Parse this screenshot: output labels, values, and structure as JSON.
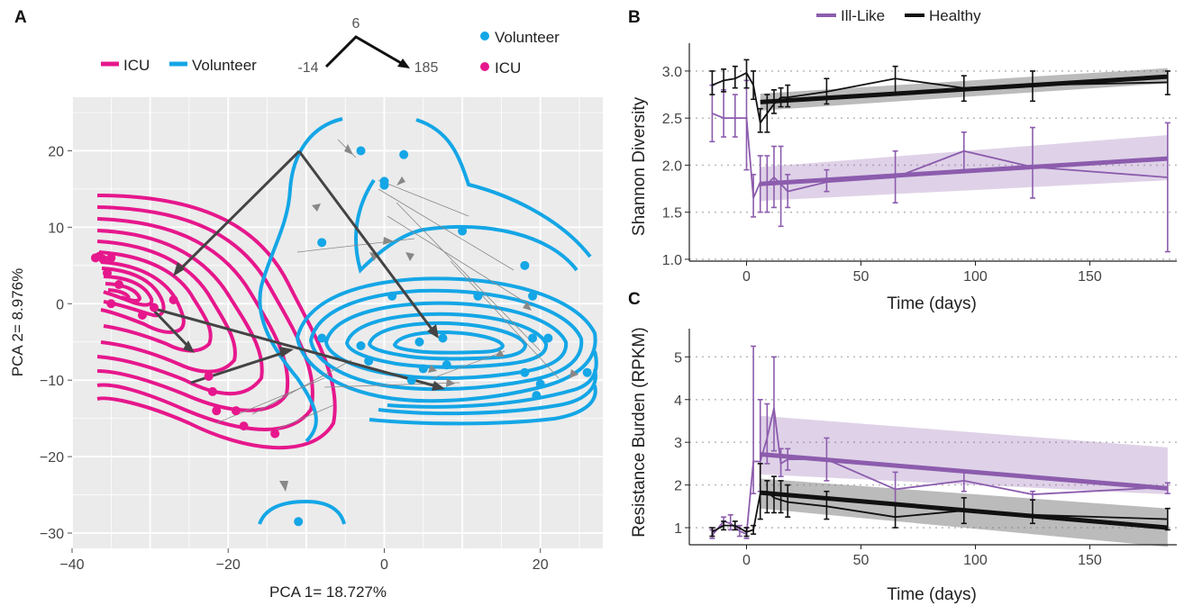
{
  "panels": {
    "a": {
      "letter": "A",
      "xlabel": "PCA 1= 18.727%",
      "ylabel": "PCA 2= 8.976%",
      "line_legend": [
        {
          "label": "ICU",
          "color": "#e6178c"
        },
        {
          "label": "Volunteer",
          "color": "#14a6e6"
        }
      ],
      "point_legend": [
        {
          "label": "Volunteer",
          "color": "#14a6e6"
        },
        {
          "label": "ICU",
          "color": "#e6178c"
        }
      ],
      "arrow_key": {
        "top": "6",
        "left": "-14",
        "right": "185"
      }
    },
    "b": {
      "letter": "B",
      "ylabel": "Shannon Diversity",
      "xlabel": "Time (days)"
    },
    "c": {
      "letter": "C",
      "ylabel": "Resistance Burden (RPKM)",
      "xlabel": "Time (days)"
    },
    "shared_legend": [
      {
        "label": "Ill-Like",
        "color": "#8c5cad"
      },
      {
        "label": "Healthy",
        "color": "#111111"
      }
    ]
  },
  "chart_data": [
    {
      "panel": "A",
      "type": "scatter",
      "xlabel": "PCA 1= 18.727%",
      "ylabel": "PCA 2= 8.976%",
      "xlim": [
        -40,
        28
      ],
      "ylim": [
        -32,
        27
      ],
      "xticks": [
        -40,
        -20,
        0,
        20
      ],
      "yticks": [
        20,
        10,
        0,
        -10,
        -20,
        -30
      ],
      "grid": true,
      "series": [
        {
          "name": "Volunteer",
          "color": "#14a6e6",
          "points": [
            [
              -3,
              20
            ],
            [
              2.5,
              19.5
            ],
            [
              0,
              16
            ],
            [
              0,
              15.5
            ],
            [
              -8,
              8
            ],
            [
              10,
              9.5
            ],
            [
              18,
              5
            ],
            [
              1,
              1
            ],
            [
              12,
              1
            ],
            [
              19,
              1
            ],
            [
              -8,
              -4.5
            ],
            [
              -3,
              -5.5
            ],
            [
              7.5,
              -4.5
            ],
            [
              4.5,
              -5
            ],
            [
              -2,
              -7.5
            ],
            [
              5,
              -8.5
            ],
            [
              8,
              -8
            ],
            [
              19,
              -4.5
            ],
            [
              21,
              -4.5
            ],
            [
              3.5,
              -10
            ],
            [
              18,
              -9
            ],
            [
              20,
              -10.5
            ],
            [
              26,
              -9
            ],
            [
              19.5,
              -12
            ],
            [
              -11,
              -28.5
            ]
          ]
        },
        {
          "name": "ICU",
          "color": "#e6178c",
          "points": [
            [
              -37,
              6
            ],
            [
              -36.5,
              6.2
            ],
            [
              -36,
              5.8
            ],
            [
              -35,
              6
            ],
            [
              -35.5,
              4
            ],
            [
              -34,
              2.5
            ],
            [
              -35,
              0
            ],
            [
              -31,
              -1.5
            ],
            [
              -29.5,
              -0.5
            ],
            [
              -27,
              0.5
            ],
            [
              -22.5,
              -9.5
            ],
            [
              -22,
              -11.5
            ],
            [
              -21.5,
              -14
            ],
            [
              -19,
              -14
            ],
            [
              -18,
              -16
            ],
            [
              -14,
              -17
            ]
          ]
        }
      ],
      "paths": [
        {
          "from": [
            -24,
            -10.5
          ],
          "to": [
            -11,
            -7
          ],
          "note": "trajectory"
        },
        {
          "from": [
            -10,
            20
          ],
          "to": [
            8,
            -4.5
          ],
          "note": "trajectory"
        }
      ]
    },
    {
      "panel": "B",
      "type": "line",
      "xlabel": "Time (days)",
      "ylabel": "Shannon Diversity",
      "xlim": [
        -25,
        188
      ],
      "ylim": [
        0.98,
        3.2
      ],
      "xticks": [
        0,
        50,
        100,
        150
      ],
      "yticks": [
        1.0,
        1.5,
        2.0,
        2.5,
        3.0
      ],
      "grid": "horizontal dotted",
      "series": [
        {
          "name": "Ill-Like",
          "color": "#8c5cad",
          "x": [
            -15,
            -10,
            -5,
            0,
            3,
            6,
            9,
            12,
            15,
            18,
            35,
            65,
            95,
            125,
            184
          ],
          "y": [
            2.55,
            2.5,
            2.5,
            2.5,
            1.65,
            1.82,
            1.8,
            1.87,
            1.8,
            1.72,
            1.82,
            1.87,
            2.15,
            1.98,
            1.87
          ],
          "err": [
            [
              2.25,
              2.85
            ],
            [
              2.3,
              2.8
            ],
            [
              2.3,
              2.75
            ],
            [
              1.95,
              2.9
            ],
            [
              1.45,
              1.9
            ],
            [
              1.5,
              2.1
            ],
            [
              1.5,
              2.1
            ],
            [
              1.55,
              2.2
            ],
            [
              1.35,
              2.2
            ],
            [
              1.55,
              1.9
            ],
            [
              1.72,
              1.95
            ],
            [
              1.6,
              2.15
            ],
            [
              1.95,
              2.35
            ],
            [
              1.65,
              2.4
            ],
            [
              1.08,
              2.45
            ]
          ],
          "trend": {
            "x": [
              6,
              184
            ],
            "y": [
              1.8,
              2.07
            ],
            "band_lo": [
              1.62,
              1.84
            ],
            "band_hi": [
              1.98,
              2.32
            ]
          }
        },
        {
          "name": "Healthy",
          "color": "#111111",
          "x": [
            -15,
            -10,
            -5,
            0,
            3,
            6,
            9,
            12,
            15,
            18,
            35,
            65,
            95,
            125,
            184
          ],
          "y": [
            2.85,
            2.9,
            2.92,
            2.98,
            2.85,
            2.45,
            2.55,
            2.65,
            2.72,
            2.72,
            2.78,
            2.92,
            2.82,
            2.85,
            2.88
          ],
          "err": [
            [
              2.75,
              3.0
            ],
            [
              2.78,
              3.02
            ],
            [
              2.82,
              3.05
            ],
            [
              2.82,
              3.12
            ],
            [
              2.7,
              3.0
            ],
            [
              2.35,
              2.6
            ],
            [
              2.35,
              2.75
            ],
            [
              2.55,
              2.8
            ],
            [
              2.62,
              2.82
            ],
            [
              2.62,
              2.85
            ],
            [
              2.65,
              2.92
            ],
            [
              2.75,
              3.05
            ],
            [
              2.68,
              2.95
            ],
            [
              2.68,
              3.0
            ],
            [
              2.75,
              3.0
            ]
          ],
          "trend": {
            "x": [
              6,
              184
            ],
            "y": [
              2.67,
              2.94
            ],
            "band_lo": [
              2.58,
              2.87
            ],
            "band_hi": [
              2.76,
              3.03
            ]
          }
        }
      ]
    },
    {
      "panel": "C",
      "type": "line",
      "xlabel": "Time (days)",
      "ylabel": "Resistance Burden (RPKM)",
      "xlim": [
        -25,
        188
      ],
      "ylim": [
        0.6,
        5.45
      ],
      "xticks": [
        0,
        50,
        100,
        150
      ],
      "yticks": [
        1,
        2,
        3,
        4,
        5
      ],
      "grid": "horizontal dotted",
      "series": [
        {
          "name": "Ill-Like",
          "color": "#8c5cad",
          "x": [
            -15,
            -10,
            -7,
            -3,
            0,
            3,
            6,
            9,
            12,
            15,
            18,
            35,
            65,
            95,
            125,
            184
          ],
          "y": [
            0.82,
            1.15,
            1.1,
            0.92,
            0.85,
            2.55,
            2.55,
            3.1,
            3.8,
            2.5,
            2.6,
            2.6,
            1.9,
            2.1,
            1.78,
            1.95
          ],
          "err": [
            [
              0.75,
              0.95
            ],
            [
              1.05,
              1.25
            ],
            [
              0.95,
              1.3
            ],
            [
              0.8,
              1.05
            ],
            [
              0.75,
              1.0
            ],
            [
              1.8,
              5.25
            ],
            [
              1.85,
              4.0
            ],
            [
              2.5,
              3.9
            ],
            [
              2.8,
              5.0
            ],
            [
              2.2,
              2.85
            ],
            [
              2.35,
              2.85
            ],
            [
              2.1,
              3.1
            ],
            [
              1.55,
              2.3
            ],
            [
              1.85,
              2.3
            ],
            [
              1.65,
              1.85
            ],
            [
              1.8,
              2.05
            ]
          ],
          "trend": {
            "x": [
              6,
              184
            ],
            "y": [
              2.72,
              1.92
            ],
            "band_lo": [
              2.25,
              1.78
            ],
            "band_hi": [
              3.62,
              2.88
            ]
          }
        },
        {
          "name": "Healthy",
          "color": "#111111",
          "x": [
            -15,
            -10,
            -5,
            0,
            3,
            6,
            9,
            12,
            15,
            18,
            35,
            65,
            95,
            125,
            184
          ],
          "y": [
            0.9,
            1.05,
            1.05,
            0.9,
            0.95,
            1.8,
            1.85,
            1.7,
            1.65,
            1.6,
            1.5,
            1.25,
            1.4,
            1.3,
            1.2
          ],
          "err": [
            [
              0.8,
              1.0
            ],
            [
              0.95,
              1.15
            ],
            [
              0.95,
              1.15
            ],
            [
              0.8,
              1.0
            ],
            [
              0.85,
              1.05
            ],
            [
              1.2,
              2.5
            ],
            [
              1.35,
              2.1
            ],
            [
              1.35,
              2.2
            ],
            [
              1.35,
              2.1
            ],
            [
              1.25,
              2.0
            ],
            [
              1.2,
              1.85
            ],
            [
              1.0,
              1.55
            ],
            [
              1.1,
              1.7
            ],
            [
              1.1,
              1.65
            ],
            [
              0.95,
              1.45
            ]
          ],
          "trend": {
            "x": [
              6,
              184
            ],
            "y": [
              1.82,
              1.0
            ],
            "band_lo": [
              1.45,
              0.55
            ],
            "band_hi": [
              2.15,
              1.45
            ]
          }
        }
      ]
    }
  ]
}
